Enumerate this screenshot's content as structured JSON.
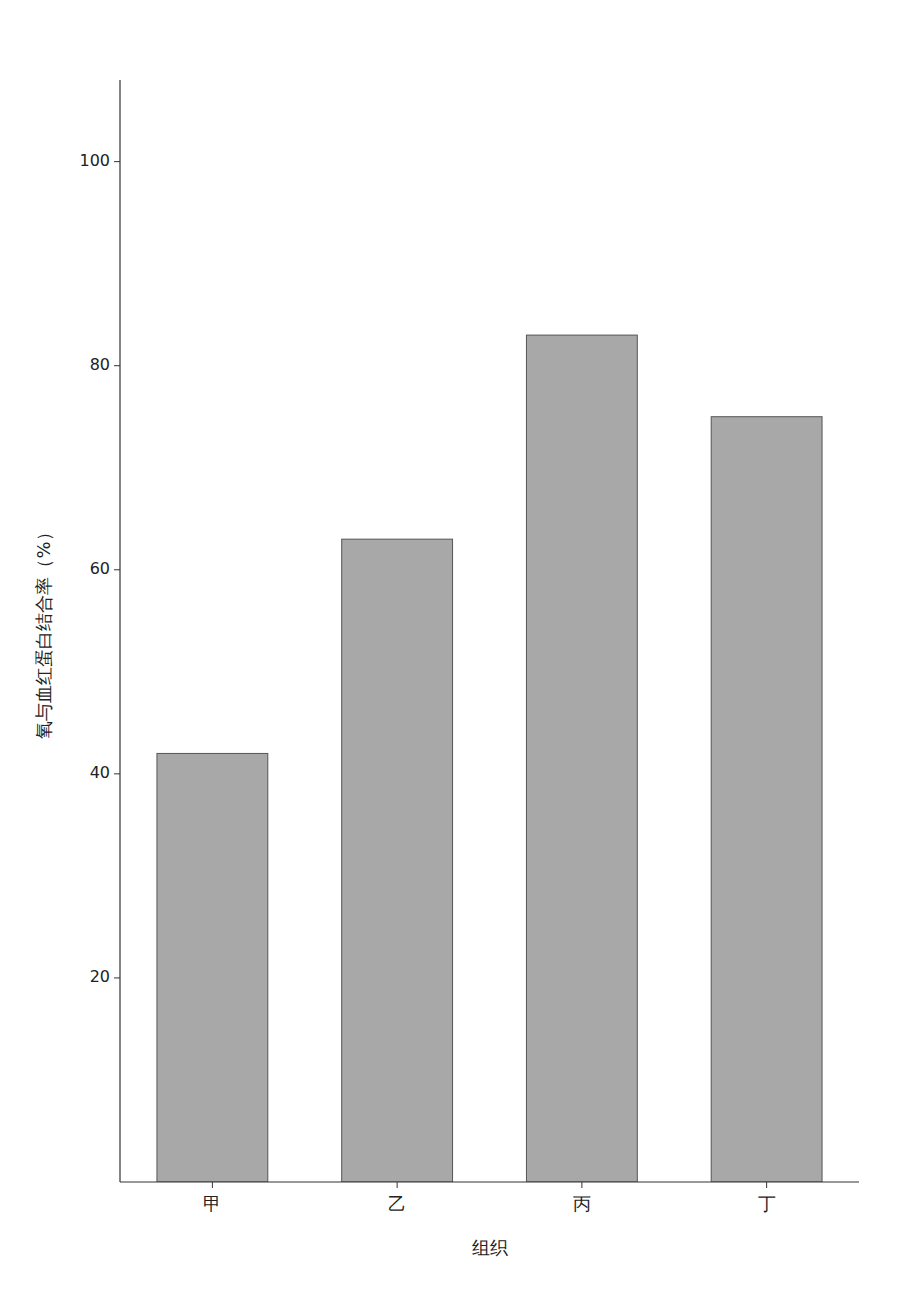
{
  "chart_data": {
    "type": "bar",
    "categories": [
      "甲",
      "乙",
      "丙",
      "丁"
    ],
    "values": [
      42,
      63,
      83,
      75
    ],
    "color": "#a8a8a8",
    "xlabel": "组织",
    "ylabel": "氧与血红蛋白结合率（%）",
    "ylim": [
      0,
      108
    ],
    "yticks": [
      20,
      40,
      60,
      80,
      100
    ],
    "grid": false
  }
}
